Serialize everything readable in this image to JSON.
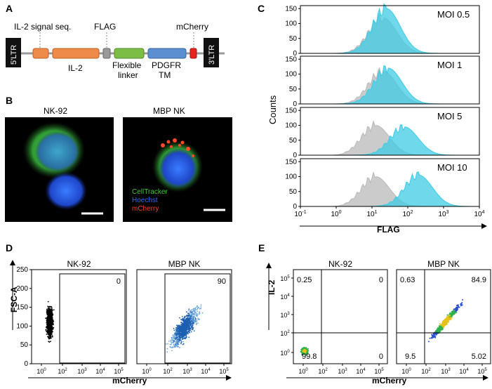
{
  "panels": {
    "A": {
      "letter": "A",
      "ltr5": "5'LTR",
      "ltr3": "3'LTR",
      "labels": {
        "signal": "IL-2 signal seq.",
        "flag": "FLAG",
        "mcherry": "mCherry",
        "il2": "IL-2",
        "linker1": "Flexible",
        "linker2": "linker",
        "pdgfr1": "PDGFR",
        "pdgfr2": "TM"
      },
      "colors": {
        "signal": "#ee8a4a",
        "il2": "#ee8a4a",
        "flag": "#9a9a9a",
        "linker": "#7cbd45",
        "pdgfr": "#5b8fcf",
        "mcherry": "#e8231d",
        "ltr": "#111111"
      }
    },
    "B": {
      "letter": "B",
      "left_title": "NK-92",
      "right_title": "MBP NK",
      "legend": [
        "CellTracker",
        "Hoechst",
        "mCherry"
      ],
      "legend_colors": [
        "#3cc83c",
        "#3a66ff",
        "#ff3a2a"
      ]
    },
    "C": {
      "letter": "C",
      "ylabel": "Counts",
      "xlabel": "FLAG",
      "y_ticks": [
        "0",
        "50",
        "100",
        "150"
      ],
      "x_tick_exponents": [
        "-1",
        "0",
        "1",
        "2",
        "3",
        "4"
      ],
      "x_tick_base": "10",
      "histograms": [
        {
          "label": "MOI 0.5",
          "gray_peak_log": 1.3,
          "cyan_peak_log": 1.4,
          "gray_height": 120,
          "cyan_height": 150
        },
        {
          "label": "MOI 1",
          "gray_peak_log": 1.3,
          "cyan_peak_log": 1.45,
          "gray_height": 110,
          "cyan_height": 120
        },
        {
          "label": "MOI 5",
          "gray_peak_log": 1.1,
          "cyan_peak_log": 1.9,
          "gray_height": 100,
          "cyan_height": 95
        },
        {
          "label": "MOI 10",
          "gray_peak_log": 1.1,
          "cyan_peak_log": 2.3,
          "gray_height": 100,
          "cyan_height": 105
        }
      ],
      "colors": {
        "gray": "#b9b9b9",
        "cyan": "#3fcbe3"
      }
    },
    "D": {
      "letter": "D",
      "ylabel": "FSC-A",
      "xlabel": "mCherry",
      "y_ticks": [
        "0",
        "50",
        "100",
        "150",
        "200",
        "250"
      ],
      "x_tick_base": "10",
      "x_tick_exponents": [
        "0",
        "2",
        "3",
        "4",
        "5"
      ],
      "plots": [
        {
          "title": "NK-92",
          "gate_value": "0"
        },
        {
          "title": "MBP NK",
          "gate_value": "90"
        }
      ]
    },
    "E": {
      "letter": "E",
      "ylabel": "IL-2",
      "xlabel": "mCherry",
      "x_tick_base": "10",
      "x_tick_exponents": [
        "0",
        "2",
        "3",
        "4",
        "5"
      ],
      "y_tick_exponents": [
        "0",
        "2",
        "3",
        "4",
        "5"
      ],
      "plots": [
        {
          "title": "NK-92",
          "q_ul": "0.25",
          "q_ur": "0",
          "q_ll": "99.8",
          "q_lr": "0"
        },
        {
          "title": "MBP NK",
          "q_ul": "0.63",
          "q_ur": "84.9",
          "q_ll": "9.5",
          "q_lr": "5.02"
        }
      ]
    }
  }
}
